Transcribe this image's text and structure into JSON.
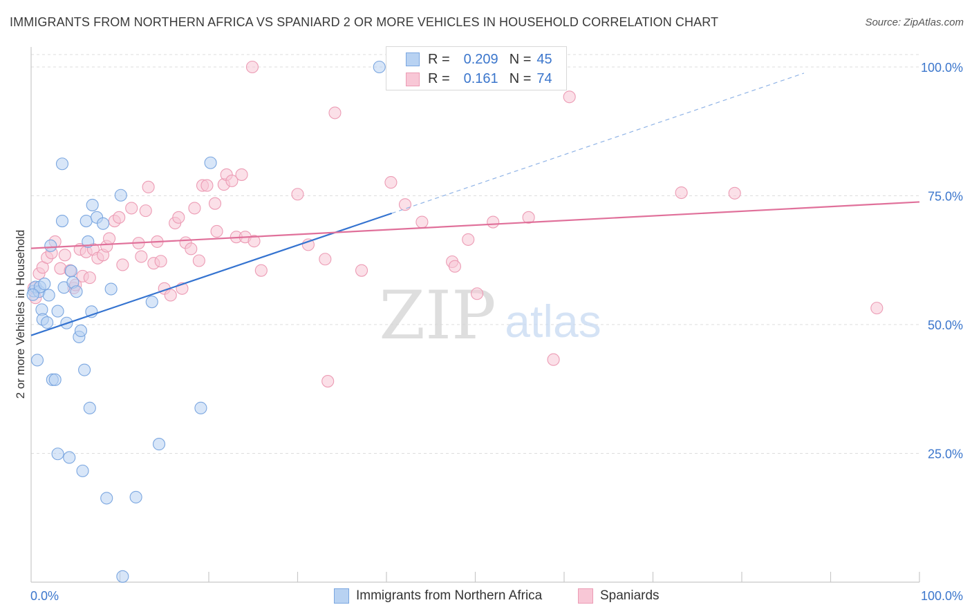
{
  "title": "IMMIGRANTS FROM NORTHERN AFRICA VS SPANIARD 2 OR MORE VEHICLES IN HOUSEHOLD CORRELATION CHART",
  "source": "Source: ZipAtlas.com",
  "watermark": {
    "zip": "ZIP",
    "atlas": "atlas"
  },
  "legend": {
    "r_label": "R =",
    "n_label": "N =",
    "rows": [
      {
        "r": "0.209",
        "n": "45"
      },
      {
        "r": "0.161",
        "n": "74"
      }
    ]
  },
  "colors": {
    "blue_fill": "#b8d2f2",
    "blue_stroke": "#7aa6e0",
    "blue_line": "#3473d0",
    "pink_fill": "#f8c7d6",
    "pink_stroke": "#ec9bb4",
    "pink_line": "#e0709a",
    "tick_label": "#3b76cc",
    "grid": "#dcdcdc"
  },
  "chart_data": {
    "type": "scatter",
    "title": "IMMIGRANTS FROM NORTHERN AFRICA VS SPANIARD 2 OR MORE VEHICLES IN HOUSEHOLD CORRELATION CHART",
    "xlabel": "",
    "ylabel": "2 or more Vehicles in Household",
    "xlim": [
      0,
      100
    ],
    "ylim": [
      0,
      102
    ],
    "x_tick_labels": [
      "0.0%",
      "100.0%"
    ],
    "y_ticks": [
      25,
      50,
      75,
      100
    ],
    "y_tick_labels": [
      "25.0%",
      "50.0%",
      "75.0%",
      "100.0%"
    ],
    "grid": true,
    "legend_position": "top-center",
    "series": [
      {
        "name": "Immigrants from Northern Africa",
        "color": "#7aa6e0",
        "trend": {
          "x": [
            0,
            40.6
          ],
          "y": [
            47.9,
            71.6
          ],
          "dashed_to": [
            87,
            98.8
          ]
        },
        "points": [
          [
            0.3,
            56.5
          ],
          [
            0.5,
            57.3
          ],
          [
            0.7,
            43.1
          ],
          [
            0.9,
            56.4
          ],
          [
            1.0,
            57.3
          ],
          [
            1.2,
            52.9
          ],
          [
            1.3,
            51.0
          ],
          [
            1.5,
            57.9
          ],
          [
            1.8,
            50.4
          ],
          [
            2.0,
            55.7
          ],
          [
            2.2,
            65.3
          ],
          [
            2.4,
            39.3
          ],
          [
            2.7,
            39.3
          ],
          [
            3.0,
            52.6
          ],
          [
            3.0,
            24.9
          ],
          [
            3.5,
            81.2
          ],
          [
            3.5,
            70.1
          ],
          [
            3.7,
            57.2
          ],
          [
            4.0,
            50.3
          ],
          [
            4.3,
            24.2
          ],
          [
            4.5,
            60.4
          ],
          [
            4.7,
            58.2
          ],
          [
            5.1,
            56.4
          ],
          [
            5.4,
            47.6
          ],
          [
            5.6,
            48.8
          ],
          [
            5.8,
            21.6
          ],
          [
            6.0,
            41.2
          ],
          [
            6.2,
            70.1
          ],
          [
            6.4,
            66.1
          ],
          [
            6.6,
            33.8
          ],
          [
            6.8,
            52.5
          ],
          [
            6.9,
            73.2
          ],
          [
            7.4,
            70.8
          ],
          [
            8.1,
            69.6
          ],
          [
            8.5,
            16.3
          ],
          [
            9.0,
            56.9
          ],
          [
            10.1,
            75.1
          ],
          [
            10.3,
            1.1
          ],
          [
            11.8,
            16.5
          ],
          [
            13.6,
            54.4
          ],
          [
            14.4,
            26.8
          ],
          [
            19.1,
            33.8
          ],
          [
            20.2,
            81.4
          ],
          [
            39.2,
            100.0
          ],
          [
            0.2,
            55.8
          ]
        ]
      },
      {
        "name": "Spaniards",
        "color": "#ec9bb4",
        "trend": {
          "x": [
            0,
            100
          ],
          "y": [
            64.8,
            73.8
          ]
        },
        "points": [
          [
            0.3,
            57.1
          ],
          [
            0.5,
            55.2
          ],
          [
            0.9,
            59.9
          ],
          [
            1.3,
            61.1
          ],
          [
            1.8,
            63.0
          ],
          [
            2.3,
            63.9
          ],
          [
            2.7,
            66.1
          ],
          [
            3.3,
            60.9
          ],
          [
            3.8,
            63.5
          ],
          [
            4.4,
            60.5
          ],
          [
            4.8,
            57.1
          ],
          [
            5.0,
            57.7
          ],
          [
            5.5,
            64.6
          ],
          [
            5.8,
            59.4
          ],
          [
            6.2,
            64.1
          ],
          [
            6.6,
            59.1
          ],
          [
            7.0,
            64.6
          ],
          [
            7.5,
            62.9
          ],
          [
            8.1,
            63.5
          ],
          [
            8.5,
            65.2
          ],
          [
            8.8,
            66.7
          ],
          [
            9.4,
            70.1
          ],
          [
            9.9,
            70.8
          ],
          [
            10.3,
            61.6
          ],
          [
            11.3,
            72.6
          ],
          [
            12.1,
            65.8
          ],
          [
            12.4,
            63.2
          ],
          [
            12.9,
            72.1
          ],
          [
            13.2,
            76.7
          ],
          [
            13.8,
            61.9
          ],
          [
            14.2,
            66.1
          ],
          [
            14.6,
            62.3
          ],
          [
            15.0,
            57.0
          ],
          [
            15.7,
            55.7
          ],
          [
            16.2,
            69.7
          ],
          [
            16.6,
            70.8
          ],
          [
            17.0,
            57.0
          ],
          [
            17.4,
            65.9
          ],
          [
            18.0,
            64.7
          ],
          [
            18.4,
            72.6
          ],
          [
            18.9,
            62.4
          ],
          [
            19.3,
            77.0
          ],
          [
            19.8,
            77.0
          ],
          [
            20.7,
            73.5
          ],
          [
            20.9,
            68.1
          ],
          [
            21.7,
            77.2
          ],
          [
            22.0,
            79.1
          ],
          [
            22.6,
            77.9
          ],
          [
            23.1,
            67.0
          ],
          [
            23.7,
            79.1
          ],
          [
            24.1,
            67.0
          ],
          [
            24.9,
            100.0
          ],
          [
            25.1,
            66.2
          ],
          [
            25.9,
            60.5
          ],
          [
            30.0,
            75.3
          ],
          [
            31.2,
            65.5
          ],
          [
            33.1,
            62.7
          ],
          [
            33.4,
            39.0
          ],
          [
            34.2,
            91.1
          ],
          [
            37.2,
            60.5
          ],
          [
            40.5,
            77.6
          ],
          [
            42.1,
            73.3
          ],
          [
            44.0,
            69.9
          ],
          [
            47.4,
            62.2
          ],
          [
            47.7,
            61.3
          ],
          [
            49.2,
            66.5
          ],
          [
            50.2,
            56.0
          ],
          [
            52.0,
            69.9
          ],
          [
            56.0,
            70.8
          ],
          [
            58.8,
            43.2
          ],
          [
            60.6,
            94.2
          ],
          [
            73.2,
            75.6
          ],
          [
            79.2,
            75.5
          ],
          [
            95.2,
            53.2
          ]
        ]
      }
    ]
  },
  "bottom_legend": [
    "Immigrants from Northern Africa",
    "Spaniards"
  ]
}
